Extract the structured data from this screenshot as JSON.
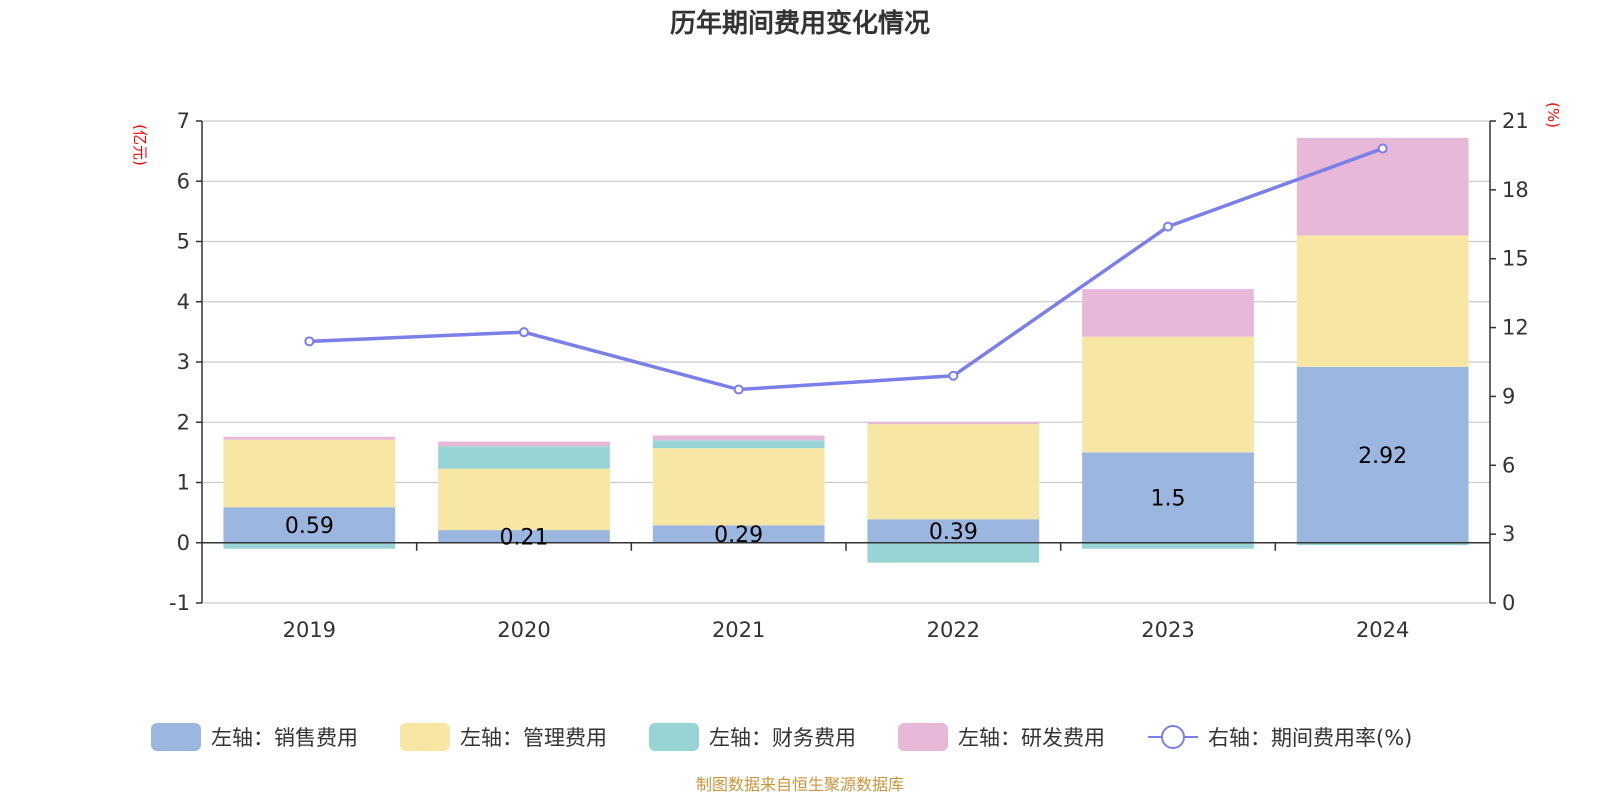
{
  "chart_data": {
    "type": "bar",
    "title": "历年期间费用变化情况",
    "categories": [
      "2019",
      "2020",
      "2021",
      "2022",
      "2023",
      "2024"
    ],
    "left_axis": {
      "unit": "(亿元)",
      "ylim": [
        -1,
        7
      ],
      "ticks": [
        -1,
        0,
        1,
        2,
        3,
        4,
        5,
        6,
        7
      ]
    },
    "right_axis": {
      "unit": "(%)",
      "ylim": [
        0,
        21
      ],
      "ticks": [
        0,
        3,
        6,
        9,
        12,
        15,
        18,
        21
      ]
    },
    "series": [
      {
        "name": "左轴：销售费用",
        "kind": "bar",
        "axis": "left",
        "color": "#9bb7e0",
        "values": [
          0.59,
          0.21,
          0.29,
          0.39,
          1.5,
          2.92
        ],
        "labels": [
          "0.59",
          "0.21",
          "0.29",
          "0.39",
          "1.5",
          "2.92"
        ]
      },
      {
        "name": "左轴：管理费用",
        "kind": "bar",
        "axis": "left",
        "color": "#f8e6a5",
        "values": [
          1.12,
          1.02,
          1.28,
          1.58,
          1.92,
          2.18
        ]
      },
      {
        "name": "左轴：财务费用",
        "kind": "bar",
        "axis": "left",
        "color": "#98d4d4",
        "values": [
          -0.1,
          0.37,
          0.13,
          -0.33,
          -0.1,
          -0.04
        ]
      },
      {
        "name": "左轴：研发费用",
        "kind": "bar",
        "axis": "left",
        "color": "#e8b8d8",
        "values": [
          0.05,
          0.08,
          0.08,
          0.03,
          0.79,
          1.62
        ]
      },
      {
        "name": "右轴：期间费用率(%)",
        "kind": "line",
        "axis": "right",
        "color": "#7b7fe8",
        "values": [
          11.4,
          11.8,
          9.3,
          9.9,
          16.4,
          19.8
        ]
      }
    ],
    "legend_position": "bottom",
    "source": "制图数据来自恒生聚源数据库"
  }
}
